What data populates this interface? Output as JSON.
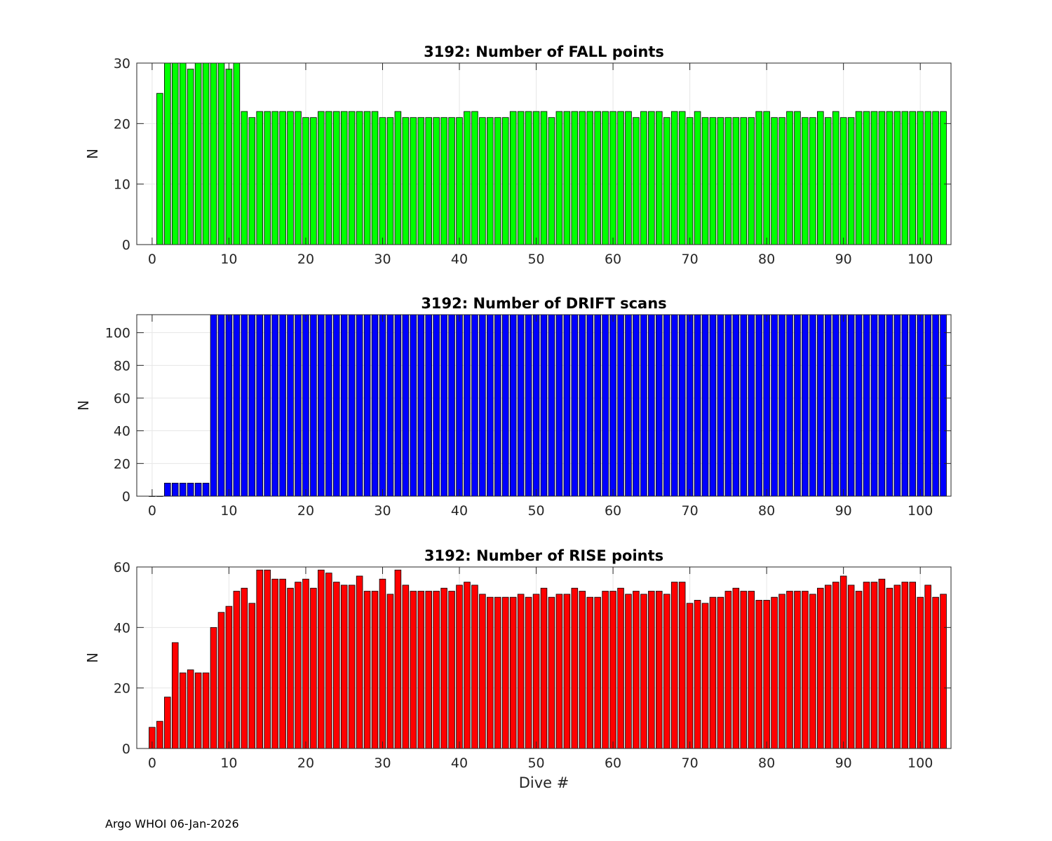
{
  "footer_text": "Argo WHOI 06-Jan-2026",
  "chart_data": [
    {
      "type": "bar",
      "title": "3192: Number of FALL points",
      "xlabel": "",
      "ylabel": "N",
      "color": "#00ff00",
      "xlim": [
        -2,
        104
      ],
      "ylim": [
        0,
        30
      ],
      "yticks": [
        0,
        10,
        20,
        30
      ],
      "xticks": [
        0,
        10,
        20,
        30,
        40,
        50,
        60,
        70,
        80,
        90,
        100
      ],
      "grid": true,
      "x_start": 1,
      "values": [
        25,
        30,
        30,
        30,
        29,
        30,
        30,
        30,
        30,
        29,
        30,
        22,
        21,
        22,
        22,
        22,
        22,
        22,
        22,
        21,
        21,
        22,
        22,
        22,
        22,
        22,
        22,
        22,
        22,
        21,
        21,
        22,
        21,
        21,
        21,
        21,
        21,
        21,
        21,
        21,
        22,
        22,
        21,
        21,
        21,
        21,
        22,
        22,
        22,
        22,
        22,
        21,
        22,
        22,
        22,
        22,
        22,
        22,
        22,
        22,
        22,
        22,
        21,
        22,
        22,
        22,
        21,
        22,
        22,
        21,
        22,
        21,
        21,
        21,
        21,
        21,
        21,
        21,
        22,
        22,
        21,
        21,
        22,
        22,
        21,
        21,
        22,
        21,
        22,
        21,
        21,
        22,
        22,
        22,
        22,
        22,
        22,
        22,
        22,
        22,
        22,
        22,
        22
      ]
    },
    {
      "type": "bar",
      "title": "3192: Number of DRIFT scans",
      "xlabel": "",
      "ylabel": "N",
      "color": "#0000ff",
      "xlim": [
        -2,
        104
      ],
      "ylim": [
        0,
        111
      ],
      "yticks": [
        0,
        20,
        40,
        60,
        80,
        100
      ],
      "xticks": [
        0,
        10,
        20,
        30,
        40,
        50,
        60,
        70,
        80,
        90,
        100
      ],
      "grid": true,
      "x_start": 0,
      "values": [
        0,
        0,
        8,
        8,
        8,
        8,
        8,
        8,
        111,
        111,
        111,
        111,
        111,
        111,
        111,
        111,
        111,
        111,
        111,
        111,
        111,
        111,
        111,
        111,
        111,
        111,
        111,
        111,
        111,
        111,
        111,
        111,
        111,
        111,
        111,
        111,
        111,
        111,
        111,
        111,
        111,
        111,
        111,
        111,
        111,
        111,
        111,
        111,
        111,
        111,
        111,
        111,
        111,
        111,
        111,
        111,
        111,
        111,
        111,
        111,
        111,
        111,
        111,
        111,
        111,
        111,
        111,
        111,
        111,
        111,
        111,
        111,
        111,
        111,
        111,
        111,
        111,
        111,
        111,
        111,
        111,
        111,
        111,
        111,
        111,
        111,
        111,
        111,
        111,
        111,
        111,
        111,
        111,
        111,
        111,
        111,
        111,
        111,
        111,
        111,
        111,
        111,
        111,
        111
      ]
    },
    {
      "type": "bar",
      "title": "3192: Number of RISE points",
      "xlabel": "Dive #",
      "ylabel": "N",
      "color": "#ff0000",
      "xlim": [
        -2,
        104
      ],
      "ylim": [
        0,
        60
      ],
      "yticks": [
        0,
        20,
        40,
        60
      ],
      "xticks": [
        0,
        10,
        20,
        30,
        40,
        50,
        60,
        70,
        80,
        90,
        100
      ],
      "grid": true,
      "x_start": 0,
      "values": [
        7,
        9,
        17,
        35,
        25,
        26,
        25,
        25,
        40,
        45,
        47,
        52,
        53,
        48,
        59,
        59,
        56,
        56,
        53,
        55,
        56,
        53,
        59,
        58,
        55,
        54,
        54,
        57,
        52,
        52,
        56,
        51,
        59,
        54,
        52,
        52,
        52,
        52,
        53,
        52,
        54,
        55,
        54,
        51,
        50,
        50,
        50,
        50,
        51,
        50,
        51,
        53,
        50,
        51,
        51,
        53,
        52,
        50,
        50,
        52,
        52,
        53,
        51,
        52,
        51,
        52,
        52,
        51,
        55,
        55,
        48,
        49,
        48,
        50,
        50,
        52,
        53,
        52,
        52,
        49,
        49,
        50,
        51,
        52,
        52,
        52,
        51,
        53,
        54,
        55,
        57,
        54,
        52,
        55,
        55,
        56,
        53,
        54,
        55,
        55,
        50,
        54,
        50,
        51
      ]
    }
  ]
}
